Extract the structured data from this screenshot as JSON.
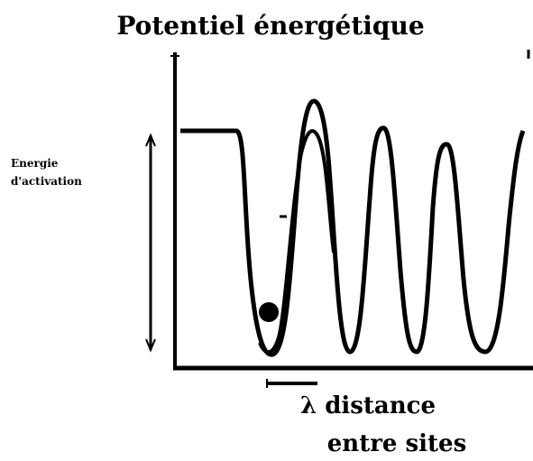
{
  "diagram": {
    "title": "Potentiel énergétique",
    "side_label_line1": "Energie",
    "side_label_line2": "d'activation",
    "x_caption_line1": "λ distance",
    "x_caption_line2": "entre sites",
    "line_color": "#000000",
    "background_color": "#ffffff"
  }
}
